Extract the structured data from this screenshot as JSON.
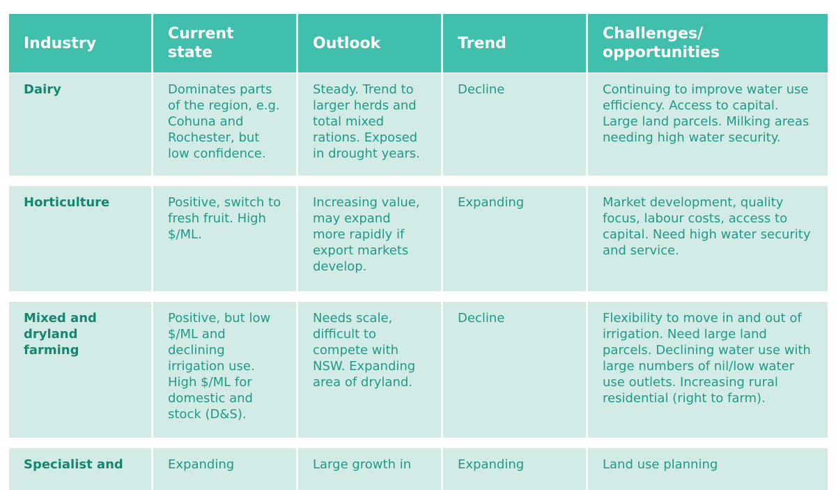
{
  "table": {
    "headers": [
      "Industry",
      "Current state",
      "Outlook",
      "Trend",
      "Challenges/ opportunities"
    ],
    "rows": [
      {
        "industry": "Dairy",
        "current_state": "Dominates parts of the region, e.g. Cohuna and Rochester, but low confidence.",
        "outlook": "Steady. Trend to larger herds and total mixed rations. Exposed in drought years.",
        "trend": "Decline",
        "challenges": "Continuing to improve water use efficiency. Access to capital. Large land parcels. Milking areas needing high water security."
      },
      {
        "industry": "Horticulture",
        "current_state": "Positive, switch to fresh fruit. High $/ML.",
        "outlook": "Increasing value, may expand more rapidly if export markets develop.",
        "trend": "Expanding",
        "challenges": "Market development, quality focus, labour costs, access to capital. Need high water security and service."
      },
      {
        "industry": "Mixed and dryland farming",
        "current_state": "Positive, but low $/ML and declining irrigation use. High $/ML for domestic and stock (D&S).",
        "outlook": "Needs scale, difficult to compete with NSW. Expanding area of dryland.",
        "trend": "Decline",
        "challenges": "Flexibility to move in and out of irrigation. Need large land parcels. Declining water use with large numbers of nil/low water use outlets. Increasing rural residential (right to farm)."
      },
      {
        "industry": "Specialist and",
        "current_state": "Expanding",
        "outlook": "Large growth in",
        "trend": "Expanding",
        "challenges": "Land use planning"
      }
    ]
  }
}
